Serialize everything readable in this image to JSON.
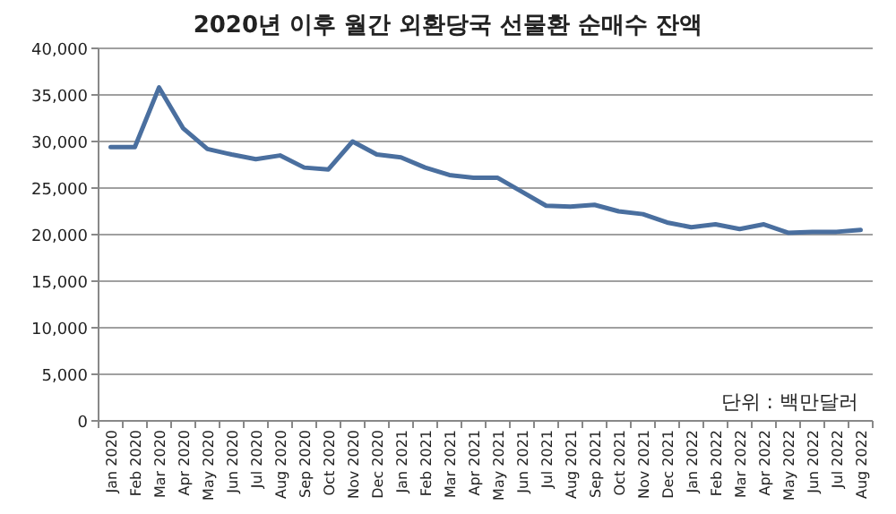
{
  "chart_data": {
    "type": "line",
    "title": "2020년 이후 월간 외환당국 선물환 순매수 잔액",
    "categories": [
      "Jan 2020",
      "Feb 2020",
      "Mar 2020",
      "Apr 2020",
      "May 2020",
      "Jun 2020",
      "Jul 2020",
      "Aug 2020",
      "Sep 2020",
      "Oct 2020",
      "Nov 2020",
      "Dec 2020",
      "Jan 2021",
      "Feb 2021",
      "Mar 2021",
      "Apr 2021",
      "May 2021",
      "Jun 2021",
      "Jul 2021",
      "Aug 2021",
      "Sep 2021",
      "Oct 2021",
      "Nov 2021",
      "Dec 2021",
      "Jan 2022",
      "Feb 2022",
      "Mar 2022",
      "Apr 2022",
      "May 2022",
      "Jun 2022",
      "Jul 2022",
      "Aug 2022"
    ],
    "series": [
      {
        "color": "#4a6f9f",
        "values": [
          29400,
          29400,
          35800,
          31400,
          29200,
          28600,
          28100,
          28500,
          27200,
          27000,
          30000,
          28600,
          28300,
          27200,
          26400,
          26100,
          26100,
          24600,
          23100,
          23000,
          23200,
          22500,
          22200,
          21300,
          20800,
          21100,
          20600,
          21100,
          20200,
          20300,
          20300,
          20500
        ]
      }
    ],
    "ylim": [
      0,
      40000
    ],
    "yticks": [
      {
        "value": 0,
        "label": "0"
      },
      {
        "value": 5000,
        "label": "5,000"
      },
      {
        "value": 10000,
        "label": "10,000"
      },
      {
        "value": 15000,
        "label": "15,000"
      },
      {
        "value": 20000,
        "label": "20,000"
      },
      {
        "value": 25000,
        "label": "25,000"
      },
      {
        "value": 30000,
        "label": "30,000"
      },
      {
        "value": 35000,
        "label": "35,000"
      },
      {
        "value": 40000,
        "label": "40,000"
      }
    ],
    "grid": "y",
    "marker": "none",
    "line_style": "solid",
    "annotations": [
      "단위 : 백만달러"
    ]
  }
}
